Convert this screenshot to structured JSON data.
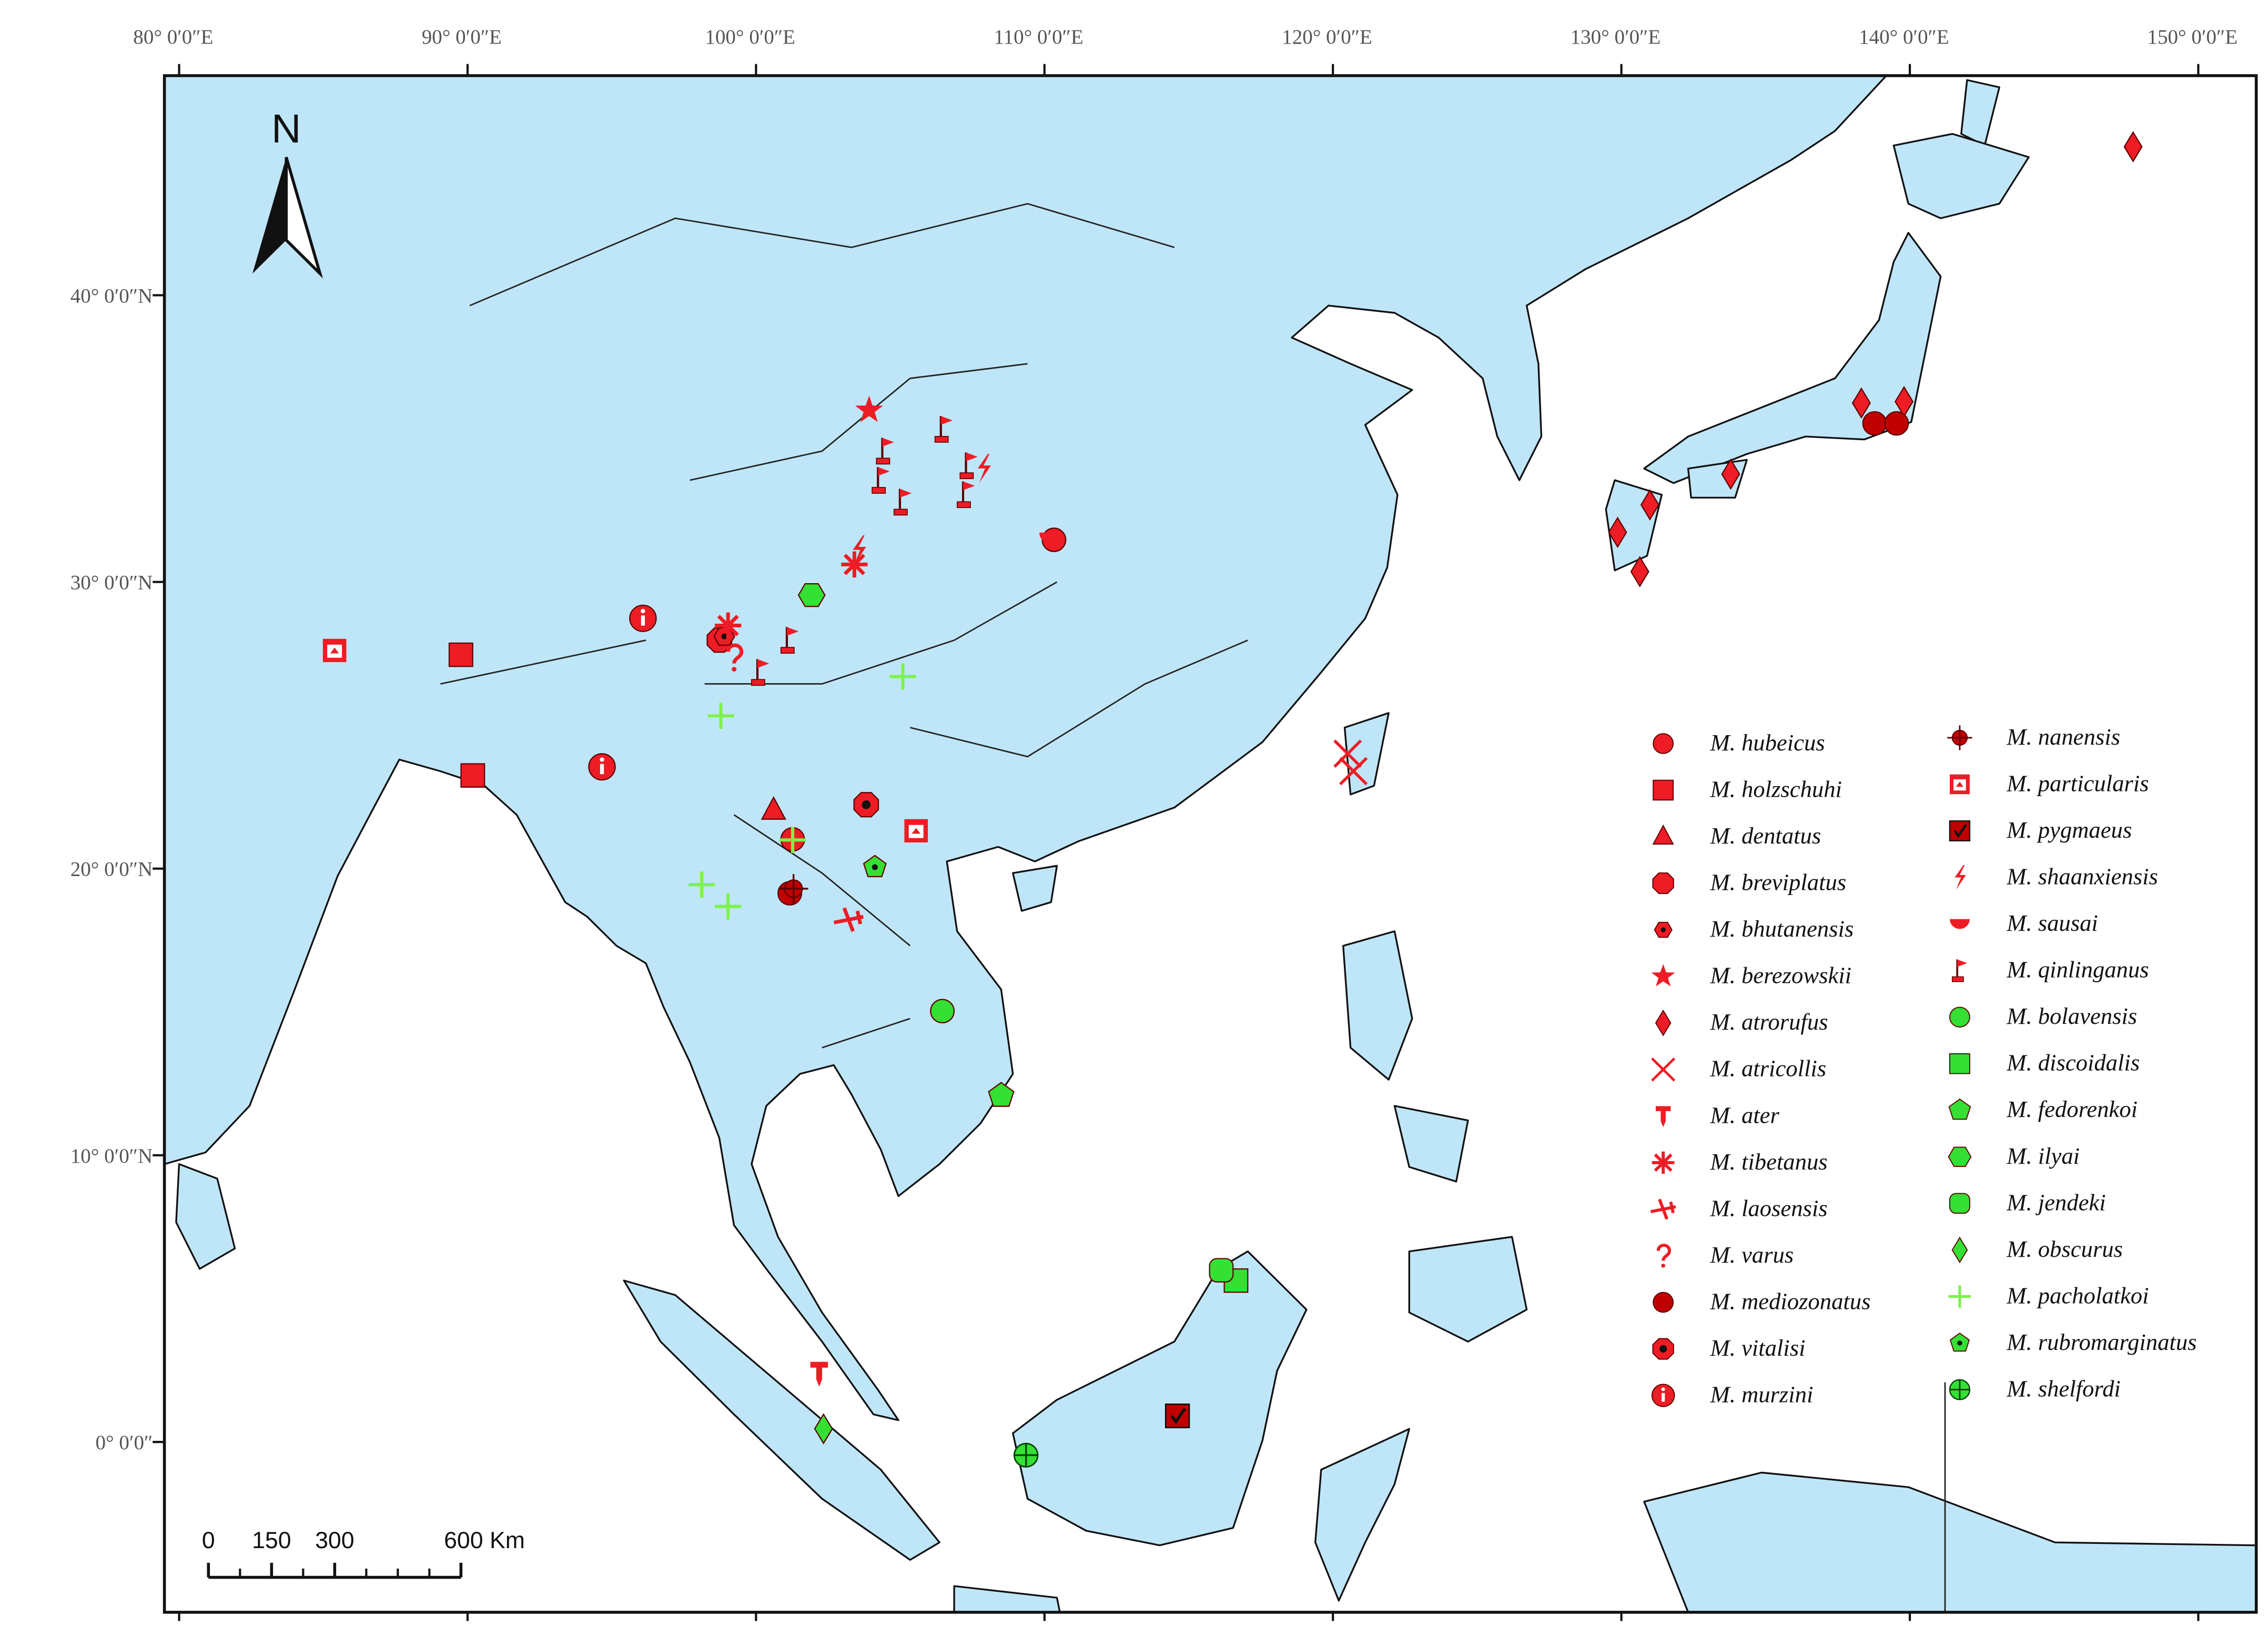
{
  "map": {
    "lonlim": [
      79.49,
      152.01
    ],
    "latlim": [
      -5.94,
      47.66
    ],
    "xticks": [
      {
        "value": 80,
        "label": "80° 0′0″E"
      },
      {
        "value": 90,
        "label": "90° 0′0″E"
      },
      {
        "value": 100,
        "label": "100° 0′0″E"
      },
      {
        "value": 110,
        "label": "110° 0′0″E"
      },
      {
        "value": 120,
        "label": "120° 0′0″E"
      },
      {
        "value": 130,
        "label": "130° 0′0″E"
      },
      {
        "value": 140,
        "label": "140° 0′0″E"
      },
      {
        "value": 150,
        "label": "150° 0′0″E"
      }
    ],
    "yticks": [
      {
        "value": 40,
        "label": "40° 0′0″N"
      },
      {
        "value": 30,
        "label": "30° 0′0″N"
      },
      {
        "value": 20,
        "label": "20° 0′0″N"
      },
      {
        "value": 10,
        "label": "10° 0′0″N"
      },
      {
        "value": 0,
        "label": "0° 0′0″"
      }
    ],
    "north_arrow": "N",
    "scale_bar": [
      0,
      150,
      300,
      {
        "value": 600,
        "label": "600 Km"
      }
    ],
    "species": [
      {
        "name": "M. hubeicus",
        "color": "#ee1c24",
        "points": [
          [
            110.33,
            31.47
          ],
          [
            101.27,
            21.02
          ]
        ]
      },
      {
        "name": "M. holzschuhi",
        "color": "#ee1c24",
        "points": [
          [
            89.77,
            27.46
          ],
          [
            90.18,
            23.25
          ]
        ]
      },
      {
        "name": "M. dentatus",
        "color": "#ee1c24",
        "points": [
          [
            100.61,
            22.03
          ]
        ]
      },
      {
        "name": "M. breviplatus",
        "color": "#ee1c24",
        "points": [
          [
            98.73,
            27.97
          ]
        ]
      },
      {
        "name": "M. bhutanensis",
        "color": "#ee1c24",
        "points": [
          [
            98.9,
            28.1
          ]
        ]
      },
      {
        "name": "M. berezowskii",
        "color": "#ee1c24",
        "points": [
          [
            103.92,
            35.99
          ]
        ]
      },
      {
        "name": "M. atrorufus",
        "color": "#ee1c24",
        "points": [
          [
            147.74,
            45.18
          ],
          [
            138.32,
            36.24
          ],
          [
            139.8,
            36.29
          ],
          [
            133.79,
            33.76
          ],
          [
            130.99,
            32.69
          ],
          [
            129.87,
            31.73
          ],
          [
            130.64,
            30.36
          ]
        ]
      },
      {
        "name": "M. atricollis",
        "color": "#ee1c24",
        "points": [
          [
            120.51,
            24.01
          ],
          [
            120.71,
            23.4
          ]
        ]
      },
      {
        "name": "M. ater",
        "color": "#ee1c24",
        "points": [
          [
            102.19,
            2.39
          ]
        ]
      },
      {
        "name": "M. tibetanus",
        "color": "#ee1c24",
        "points": [
          [
            99.03,
            28.48
          ],
          [
            103.41,
            30.61
          ]
        ]
      },
      {
        "name": "M. laosensis",
        "color": "#ee1c24",
        "points": [
          [
            103.21,
            18.22
          ]
        ]
      },
      {
        "name": "M. varus",
        "color": "#ee1c24",
        "points": [
          [
            99.24,
            27.36
          ]
        ]
      },
      {
        "name": "M. mediozonatus",
        "color": "#c00000",
        "points": [
          [
            138.78,
            35.53
          ],
          [
            139.54,
            35.53
          ],
          [
            101.17,
            19.14
          ]
        ]
      },
      {
        "name": "M. vitalisi",
        "color": "#ee1c24",
        "points": [
          [
            103.82,
            22.23
          ]
        ]
      },
      {
        "name": "M. murzini",
        "color": "#ee1c24",
        "points": [
          [
            96.08,
            28.73
          ],
          [
            94.66,
            23.55
          ]
        ]
      },
      {
        "name": "M. nanensis",
        "color": "#c00000",
        "points": [
          [
            101.3,
            19.3
          ]
        ]
      },
      {
        "name": "M. particularis",
        "color": "#ee1c24",
        "points": [
          [
            85.39,
            27.61
          ],
          [
            105.55,
            21.32
          ]
        ]
      },
      {
        "name": "M. pygmaeus",
        "color": "#c00000",
        "points": [
          [
            114.61,
            0.91
          ]
        ]
      },
      {
        "name": "M. shaanxiensis",
        "color": "#ee1c24",
        "points": [
          [
            107.89,
            33.96
          ],
          [
            103.56,
            31.12
          ]
        ]
      },
      {
        "name": "M. sausai",
        "color": "#ee1c24",
        "points": [
          [
            110.23,
            31.52
          ]
        ]
      },
      {
        "name": "M. qinlinganus",
        "color": "#ee1c24",
        "points": [
          [
            104.48,
            34.57
          ],
          [
            104.33,
            33.55
          ],
          [
            105.09,
            32.79
          ],
          [
            106.51,
            35.33
          ],
          [
            107.38,
            34.06
          ],
          [
            107.28,
            33.05
          ],
          [
            100.15,
            26.85
          ],
          [
            101.17,
            27.97
          ]
        ]
      },
      {
        "name": "M. bolavensis",
        "color": "#33e033",
        "points": [
          [
            106.46,
            15.03
          ]
        ]
      },
      {
        "name": "M. discoidalis",
        "color": "#33e033",
        "points": [
          [
            116.64,
            5.63
          ]
        ]
      },
      {
        "name": "M. fedorenkoi",
        "color": "#33e033",
        "points": [
          [
            108.5,
            12.08
          ]
        ]
      },
      {
        "name": "M. ilyai",
        "color": "#33e033",
        "points": [
          [
            101.93,
            29.54
          ]
        ]
      },
      {
        "name": "M. jendeki",
        "color": "#33e033",
        "points": [
          [
            116.13,
            5.99
          ]
        ]
      },
      {
        "name": "M. obscurus",
        "color": "#33e033",
        "points": [
          [
            102.34,
            0.46
          ]
        ]
      },
      {
        "name": "M. pacholatkoi",
        "color": "#7ef24a",
        "points": [
          [
            105.09,
            26.7
          ],
          [
            98.78,
            25.33
          ],
          [
            98.12,
            19.44
          ],
          [
            99.03,
            18.68
          ],
          [
            101.27,
            21.0
          ]
        ]
      },
      {
        "name": "M. rubromarginatus",
        "color": "#33e033",
        "points": [
          [
            104.12,
            20.05
          ]
        ]
      },
      {
        "name": "M. shelfordi",
        "color": "#33e033",
        "points": [
          [
            109.36,
            -0.46
          ]
        ]
      }
    ]
  }
}
